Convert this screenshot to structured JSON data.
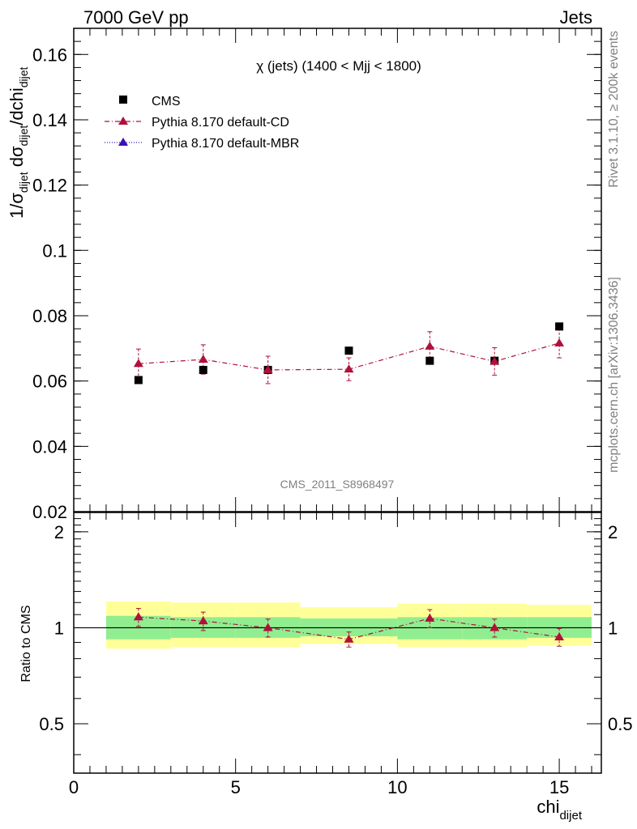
{
  "header": {
    "left": "7000 GeV pp",
    "right": "Jets"
  },
  "side_labels": {
    "rivet": "Rivet 3.1.10, ≥ 200k events",
    "mcplots": "mcplots.cern.ch [arXiv:1306.3436]"
  },
  "colors": {
    "data": "#000000",
    "cd": "#b0103a",
    "mbr": "#3a10b0",
    "band_inner": "#90ee90",
    "band_outer": "#ffff99"
  },
  "chart_data": [
    {
      "type": "scatter",
      "title": "χ (jets) (1400 < Mjj < 1800)",
      "ylabel": "1/σdijet dσdijet/dchidijet",
      "ylim": [
        0.02,
        0.168
      ],
      "xlim": [
        0,
        16.3
      ],
      "yticks": [
        "0.02",
        "0.04",
        "0.06",
        "0.08",
        "0.1",
        "0.12",
        "0.14",
        "0.16"
      ],
      "analysis_label": "CMS_2011_S8968497",
      "legend_position": "top-left",
      "series": [
        {
          "name": "CMS",
          "marker": "square",
          "x": [
            2,
            4,
            6,
            8.5,
            11,
            13,
            15
          ],
          "y": [
            0.0603,
            0.0634,
            0.0634,
            0.0693,
            0.0662,
            0.0662,
            0.0767
          ]
        },
        {
          "name": "Pythia 8.170 default-CD",
          "marker": "triangle",
          "line": "dash-dot",
          "x": [
            2,
            4,
            6,
            8.5,
            11,
            13,
            15
          ],
          "y": [
            0.0653,
            0.0666,
            0.0634,
            0.0636,
            0.0706,
            0.066,
            0.0716
          ],
          "yerr": [
            0.0045,
            0.0045,
            0.0042,
            0.0035,
            0.0045,
            0.0042,
            0.0045
          ]
        },
        {
          "name": "Pythia 8.170 default-MBR",
          "marker": "triangle",
          "line": "dotted",
          "x": [],
          "y": []
        }
      ]
    },
    {
      "type": "scatter",
      "ylabel": "Ratio to CMS",
      "xlabel": "chidijet",
      "ylim": [
        0.35,
        2.3
      ],
      "yscale": "log",
      "xlim": [
        0,
        16.3
      ],
      "yticks": [
        "0.5",
        "1",
        "2"
      ],
      "xticks": [
        "0",
        "5",
        "10",
        "15"
      ],
      "bands": {
        "bin_edges": [
          1,
          3,
          5,
          7,
          10,
          12,
          14,
          16
        ],
        "inner_low": [
          0.92,
          0.93,
          0.93,
          0.94,
          0.92,
          0.92,
          0.93
        ],
        "inner_high": [
          1.09,
          1.08,
          1.08,
          1.07,
          1.08,
          1.08,
          1.08
        ],
        "outer_low": [
          0.86,
          0.87,
          0.87,
          0.89,
          0.87,
          0.87,
          0.88
        ],
        "outer_high": [
          1.21,
          1.2,
          1.2,
          1.16,
          1.19,
          1.19,
          1.18
        ]
      },
      "series": [
        {
          "name": "Pythia 8.170 default-CD",
          "x": [
            2,
            4,
            6,
            8.5,
            11,
            13,
            15
          ],
          "y": [
            1.08,
            1.05,
            1.0,
            0.92,
            1.07,
            1.0,
            0.935
          ],
          "yerr": [
            0.07,
            0.07,
            0.065,
            0.05,
            0.07,
            0.065,
            0.06
          ]
        }
      ]
    }
  ]
}
